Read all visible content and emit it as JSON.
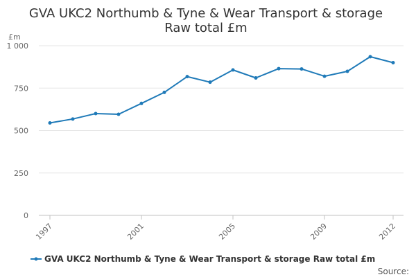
{
  "chart_data": {
    "type": "line",
    "title": "GVA UKC2 Northumb & Tyne & Wear Transport & storage",
    "subtitle": "Raw total £m",
    "ylabel": "£m",
    "xlabel": "",
    "ylim": [
      0,
      1000
    ],
    "yticks": [
      0,
      250,
      500,
      750,
      1000
    ],
    "ytick_labels": [
      "0",
      "250",
      "500",
      "750",
      "1 000"
    ],
    "xlim": [
      1997,
      2012
    ],
    "xticks": [
      1997,
      2001,
      2005,
      2009,
      2012
    ],
    "xtick_labels": [
      "1997",
      "2001",
      "2005",
      "2009",
      "2012"
    ],
    "grid": true,
    "legend_position": "bottom",
    "series": [
      {
        "name": "GVA UKC2 Northumb & Tyne & Wear Transport & storage Raw total £m",
        "color": "#1f7ab8",
        "x": [
          1997,
          1998,
          1999,
          2000,
          2001,
          2002,
          2003,
          2004,
          2005,
          2006,
          2007,
          2008,
          2009,
          2010,
          2011,
          2012
        ],
        "y": [
          545,
          568,
          600,
          596,
          660,
          725,
          818,
          785,
          857,
          810,
          865,
          863,
          820,
          849,
          935,
          900
        ]
      }
    ],
    "source_label": "Source:"
  }
}
